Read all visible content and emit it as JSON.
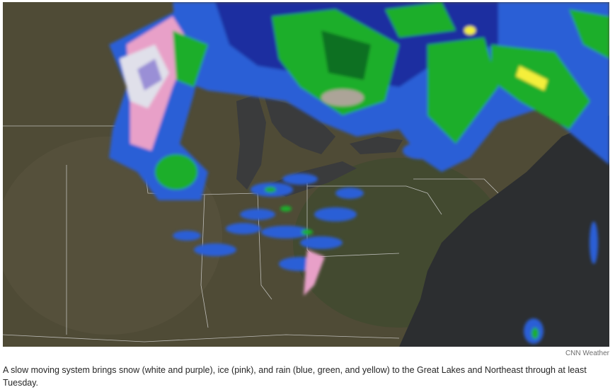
{
  "figure": {
    "map_name": "weather-radar-map",
    "legend_colors": {
      "snow": "#ffffff",
      "snow_heavy": "#9a8fd6",
      "ice": "#f0a0c8",
      "rain_light": "#2f6fe0",
      "rain_moderate": "#1eae2a",
      "rain_heavy": "#f5ef3a"
    },
    "credit": "CNN Weather",
    "caption": "A slow moving system brings snow (white and purple), ice (pink), and rain (blue, green, and yellow) to the Great Lakes and Northeast through at least Tuesday."
  }
}
